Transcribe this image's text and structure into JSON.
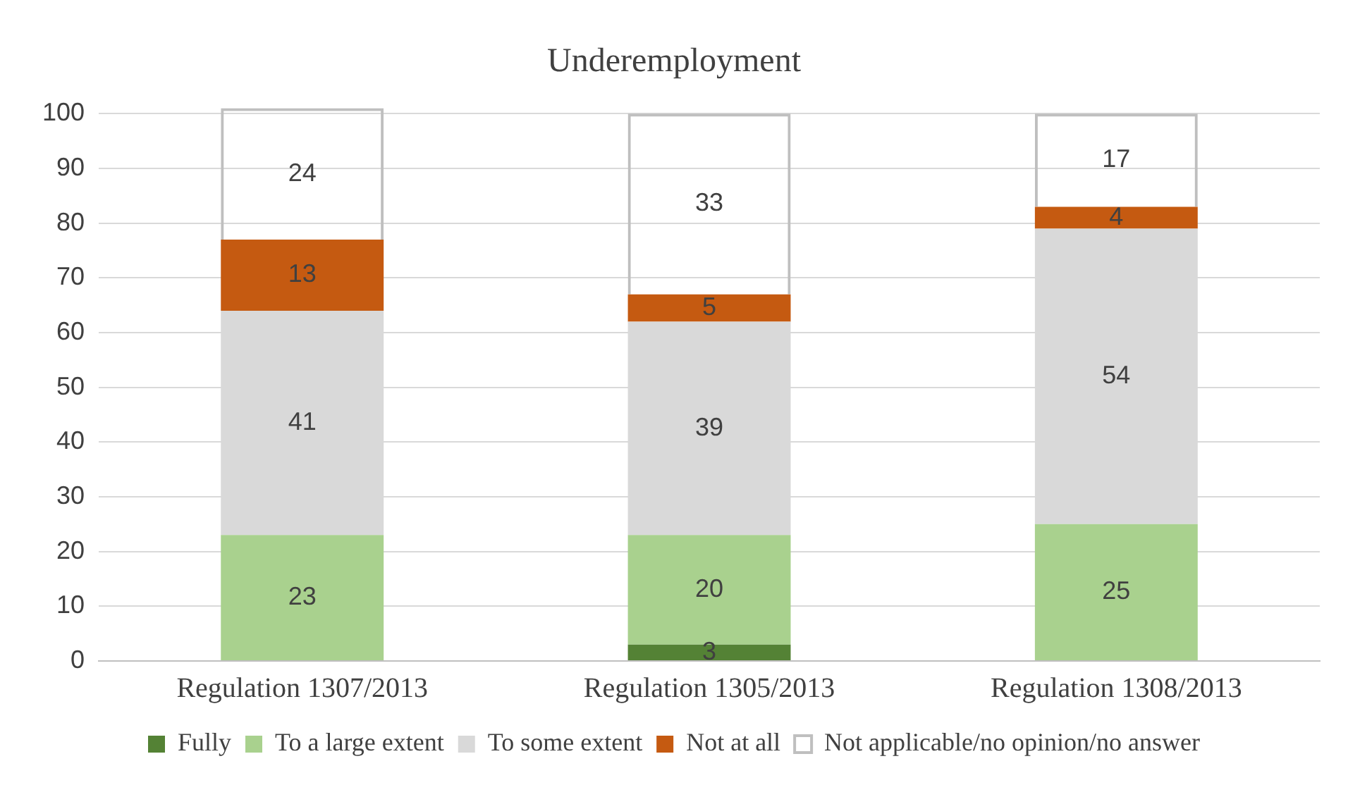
{
  "chart_data": {
    "type": "bar",
    "title": "Underemployment",
    "categories": [
      "Regulation 1307/2013",
      "Regulation 1305/2013",
      "Regulation 1308/2013"
    ],
    "stacked": true,
    "series": [
      {
        "name": "Fully",
        "color": "#548235",
        "values": [
          null,
          3,
          null
        ]
      },
      {
        "name": "To a large extent",
        "color": "#a9d18e",
        "values": [
          23,
          20,
          25
        ]
      },
      {
        "name": "To some extent",
        "color": "#d9d9d9",
        "values": [
          41,
          39,
          54
        ]
      },
      {
        "name": "Not at all",
        "color": "#c55a11",
        "values": [
          13,
          5,
          4
        ]
      },
      {
        "name": "Not applicable/no opinion/no answer",
        "color": "#bfbfbf",
        "values": [
          24,
          33,
          17
        ]
      }
    ],
    "ylim": [
      0,
      101
    ],
    "yticks": [
      0,
      10,
      20,
      30,
      40,
      50,
      60,
      70,
      80,
      90,
      100
    ],
    "grid": "y",
    "legend": "bottom",
    "data_labels": true
  }
}
